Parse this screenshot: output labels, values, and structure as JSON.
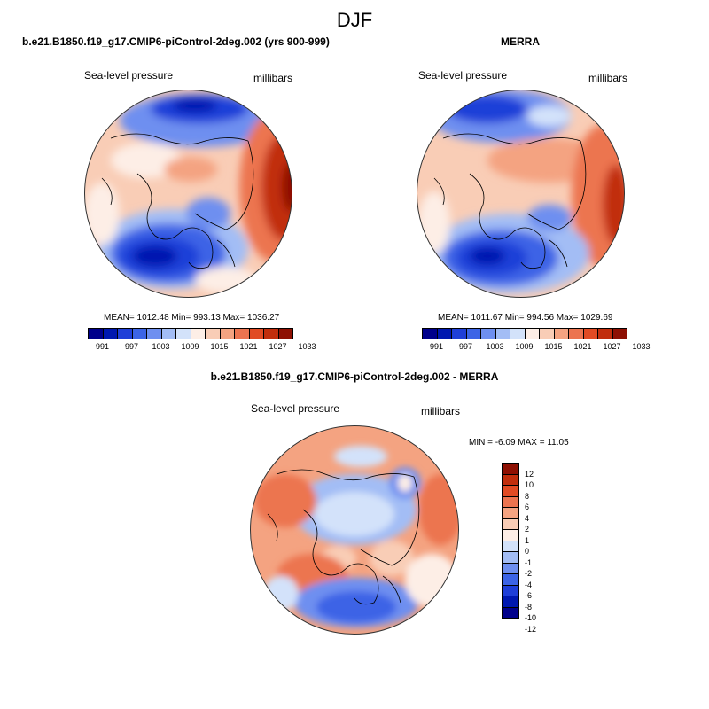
{
  "season_title": "DJF",
  "panels": [
    {
      "title": "b.e21.B1850.f19_g17.CMIP6-piControl-2deg.002 (yrs 900-999)",
      "field_label": "Sea-level pressure",
      "unit_label": "millibars",
      "stats": "MEAN= 1012.48  Min= 993.13  Max= 1036.27"
    },
    {
      "title": "MERRA",
      "field_label": "Sea-level pressure",
      "unit_label": "millibars",
      "stats": "MEAN= 1011.67  Min= 994.56  Max= 1029.69"
    },
    {
      "title": "b.e21.B1850.f19_g17.CMIP6-piControl-2deg.002 - MERRA",
      "field_label": "Sea-level pressure",
      "unit_label": "millibars",
      "stats": "MIN =  -6.09 MAX =  11.05"
    }
  ],
  "slp_colorbar": {
    "colors": [
      "#00008b",
      "#0018b0",
      "#1f3fd8",
      "#3c64e6",
      "#6e8ff0",
      "#a3bdf5",
      "#d3e2fa",
      "#fdeee6",
      "#f9cdb6",
      "#f4a381",
      "#ec7450",
      "#e14b24",
      "#c12e0d",
      "#8e1003"
    ],
    "tick_labels": [
      "991",
      "997",
      "1003",
      "1009",
      "1015",
      "1021",
      "1027",
      "1033"
    ]
  },
  "diff_colorbar": {
    "colors": [
      "#8e1003",
      "#c12e0d",
      "#e14b24",
      "#ec7450",
      "#f4a381",
      "#f9cdb6",
      "#fdeee6",
      "#d3e2fa",
      "#a3bdf5",
      "#6e8ff0",
      "#3c64e6",
      "#1f3fd8",
      "#0018b0",
      "#00008b"
    ],
    "tick_labels": [
      "12",
      "10",
      "8",
      "6",
      "4",
      "2",
      "1",
      "0",
      "-1",
      "-2",
      "-4",
      "-6",
      "-8",
      "-10",
      "-12"
    ]
  }
}
